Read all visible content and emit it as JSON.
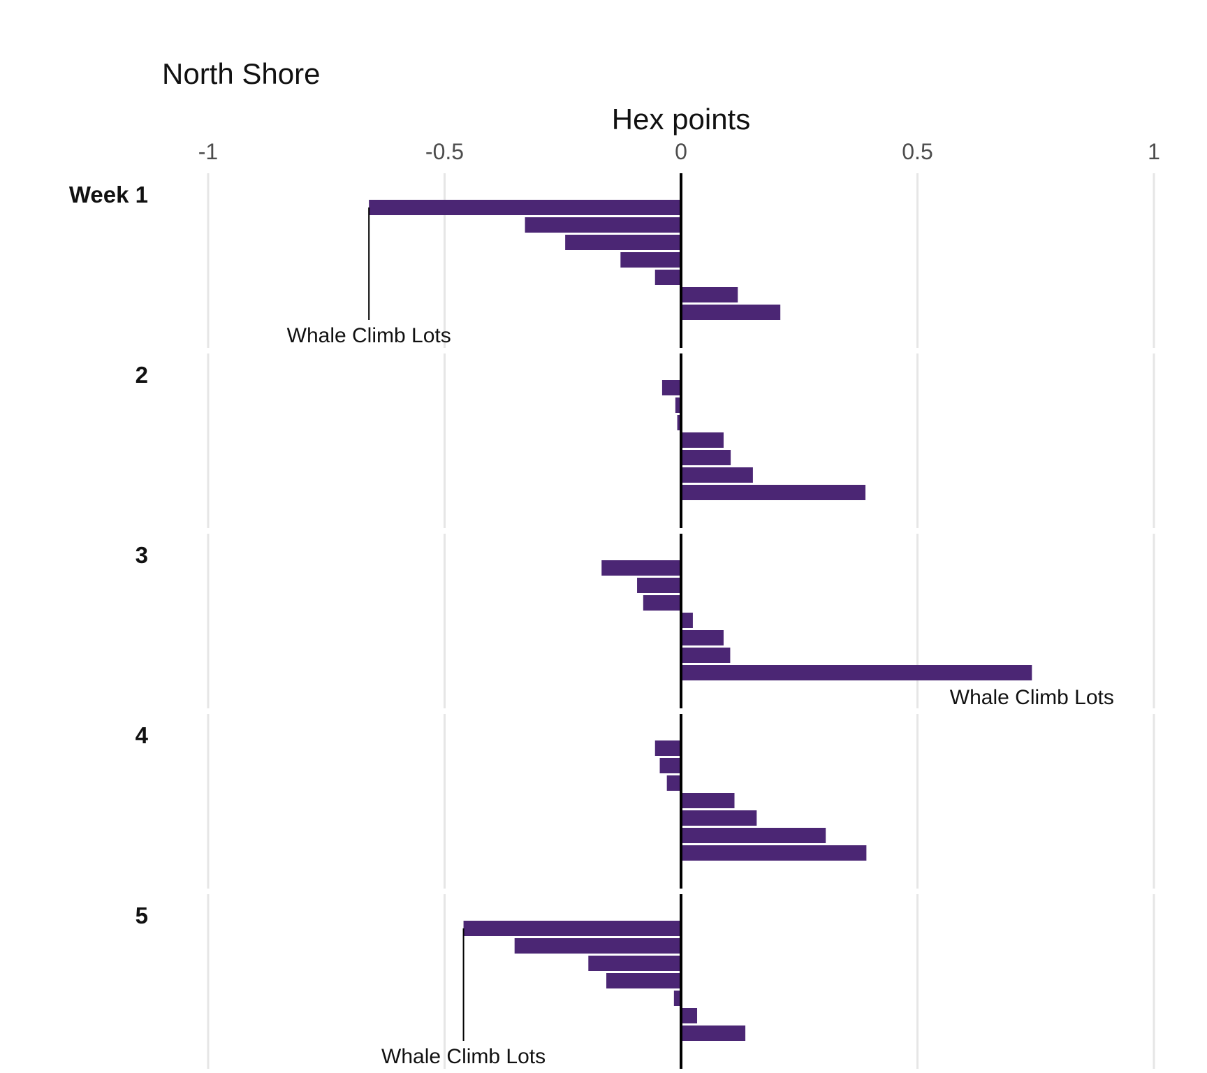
{
  "chart_data": {
    "type": "bar",
    "orientation": "horizontal",
    "title": "North Shore",
    "xlabel": "Hex points",
    "xlim": [
      -1,
      1
    ],
    "x_ticks": [
      -1,
      -0.5,
      0,
      0.5,
      1
    ],
    "x_tick_labels": [
      "-1",
      "-0.5",
      "0",
      "0.5",
      "1"
    ],
    "axis_position": "top",
    "grid": "vertical",
    "bar_color": "#4B2674",
    "facets": [
      {
        "label": "Week 1",
        "values": [
          -0.66,
          -0.33,
          -0.245,
          -0.128,
          -0.055,
          0.12,
          0.21
        ],
        "annotation": {
          "text": "Whale Climb Lots",
          "bar_index": 0
        }
      },
      {
        "label": "2",
        "values": [
          -0.04,
          -0.012,
          -0.008,
          0.09,
          0.105,
          0.152,
          0.39
        ],
        "annotation": null
      },
      {
        "label": "3",
        "values": [
          -0.168,
          -0.093,
          -0.08,
          0.025,
          0.09,
          0.104,
          0.742
        ],
        "annotation": {
          "text": "Whale Climb Lots",
          "bar_index": 6
        }
      },
      {
        "label": "4",
        "values": [
          -0.055,
          -0.045,
          -0.03,
          0.113,
          0.16,
          0.306,
          0.392
        ],
        "annotation": null
      },
      {
        "label": "5",
        "values": [
          -0.46,
          -0.352,
          -0.196,
          -0.158,
          -0.015,
          0.034,
          0.136
        ],
        "annotation": {
          "text": "Whale Climb Lots",
          "bar_index": 0
        }
      }
    ]
  }
}
